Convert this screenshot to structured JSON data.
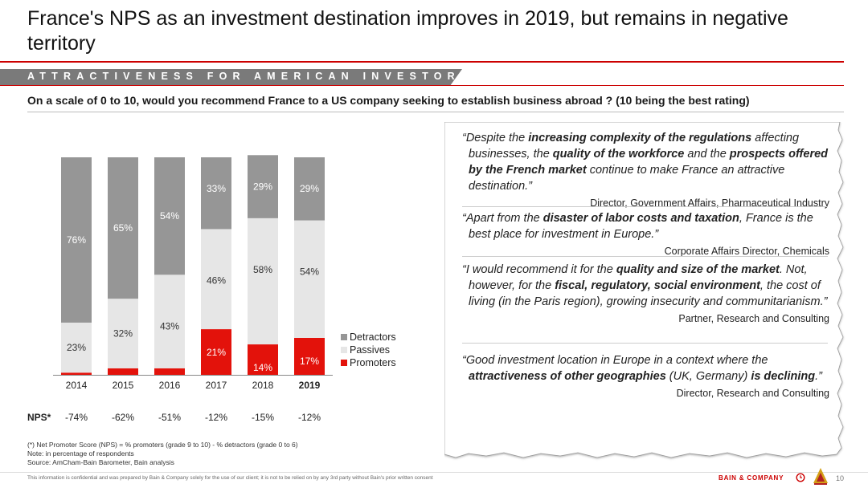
{
  "title": "France's NPS as an investment destination improves in 2019, but remains in negative territory",
  "section_banner": "ATTRACTIVENESS FOR AMERICAN INVESTORS",
  "question": "On a scale of 0 to 10, would you recommend France to a US company seeking to establish business abroad ? (10 being the best rating)",
  "colors": {
    "accent": "#cc0000",
    "detractors": "#969696",
    "passives": "#e6e6e6",
    "promoters": "#e3120b"
  },
  "chart_data": {
    "type": "bar",
    "stacked": true,
    "categories": [
      "2014",
      "2015",
      "2016",
      "2017",
      "2018",
      "2019"
    ],
    "bold_categories": [
      "2019"
    ],
    "series": [
      {
        "name": "Promoters",
        "values": [
          1,
          3,
          3,
          21,
          14,
          17
        ],
        "labels": [
          "",
          "",
          "",
          "21%",
          "14%",
          "17%"
        ],
        "color": "#e3120b"
      },
      {
        "name": "Passives",
        "values": [
          23,
          32,
          43,
          46,
          58,
          54
        ],
        "labels": [
          "23%",
          "32%",
          "43%",
          "46%",
          "58%",
          "54%"
        ],
        "color": "#e6e6e6"
      },
      {
        "name": "Detractors",
        "values": [
          76,
          65,
          54,
          33,
          29,
          29
        ],
        "labels": [
          "76%",
          "65%",
          "54%",
          "33%",
          "29%",
          "29%"
        ],
        "color": "#969696"
      }
    ],
    "legend_order": [
      "Detractors",
      "Passives",
      "Promoters"
    ],
    "legend_position": "right",
    "ylim": [
      0,
      100
    ],
    "grid": false,
    "nps_label": "NPS*",
    "nps_values": [
      "-74%",
      "-62%",
      "-51%",
      "-12%",
      "-15%",
      "-12%"
    ]
  },
  "quotes": [
    {
      "parts": [
        {
          "t": "“Despite the ",
          "b": false
        },
        {
          "t": "increasing complexity of the regulations",
          "b": true
        },
        {
          "t": " affecting businesses, the ",
          "b": false
        },
        {
          "t": "quality of the workforce",
          "b": true
        },
        {
          "t": " and the ",
          "b": false
        },
        {
          "t": "prospects offered by the French market",
          "b": true
        },
        {
          "t": " continue to make France an attractive destination.”",
          "b": false
        }
      ],
      "attribution": "Director, Government Affairs, Pharmaceutical Industry"
    },
    {
      "parts": [
        {
          "t": "“Apart from the ",
          "b": false
        },
        {
          "t": "disaster of labor costs and taxation",
          "b": true
        },
        {
          "t": ", France is the best place for investment in Europe.”",
          "b": false
        }
      ],
      "attribution": "Corporate Affairs Director, Chemicals"
    },
    {
      "parts": [
        {
          "t": "“I would recommend it for the ",
          "b": false
        },
        {
          "t": "quality and size of the market",
          "b": true
        },
        {
          "t": ". Not, however, for the ",
          "b": false
        },
        {
          "t": "fiscal, regulatory, social environment",
          "b": true
        },
        {
          "t": ", the cost of living (in the Paris region), growing insecurity and communitarianism.”",
          "b": false
        }
      ],
      "attribution": "Partner, Research and Consulting"
    },
    {
      "parts": [
        {
          "t": "“Good investment location in Europe in a context where the ",
          "b": false
        },
        {
          "t": "attractiveness of other geographies",
          "b": true
        },
        {
          "t": " (UK, Germany) ",
          "b": false
        },
        {
          "t": "is declining",
          "b": true
        },
        {
          "t": ".”",
          "b": false
        }
      ],
      "attribution": "Director, Research and Consulting"
    }
  ],
  "notes": {
    "nps_definition": "(*) Net Promoter Score (NPS) = % promoters (grade 9 to 10) - % detractors (grade 0 to 6)",
    "note": "Note: in percentage of respondents",
    "source": "Source: AmCham-Bain Barometer, Bain analysis"
  },
  "footer": {
    "confidential": "This information is confidential and was prepared by Bain & Company solely for the use of our client; it is not to be relied on by any 3rd party without Bain's prior written consent",
    "brand": "BAIN & COMPANY",
    "page_number": "10",
    "brand_icon": "clock-icon",
    "logo_icon": "amcham-logo-icon"
  }
}
